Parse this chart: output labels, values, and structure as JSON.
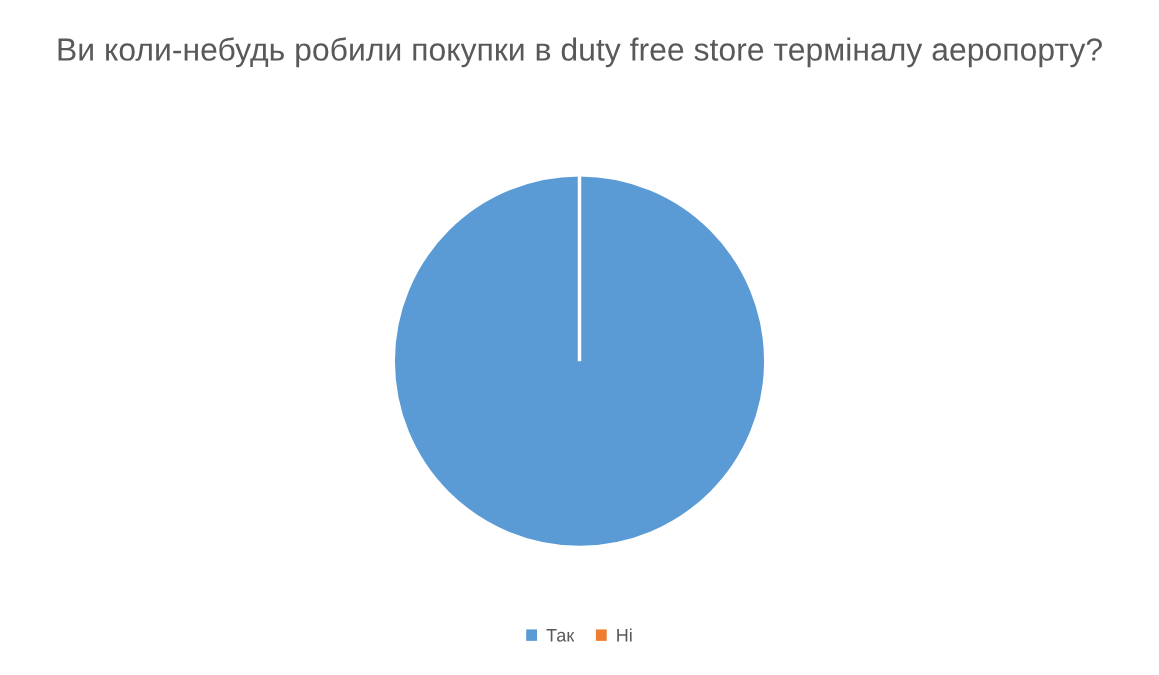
{
  "chart_data": {
    "type": "pie",
    "title": "Ви коли-небудь робили покупки в duty free store терміналу аеропорту?",
    "categories": [
      "Так",
      "Ні"
    ],
    "values": [
      100,
      0
    ],
    "colors": [
      "#5b9bd5",
      "#ed7d31"
    ],
    "legend": "bottom"
  }
}
